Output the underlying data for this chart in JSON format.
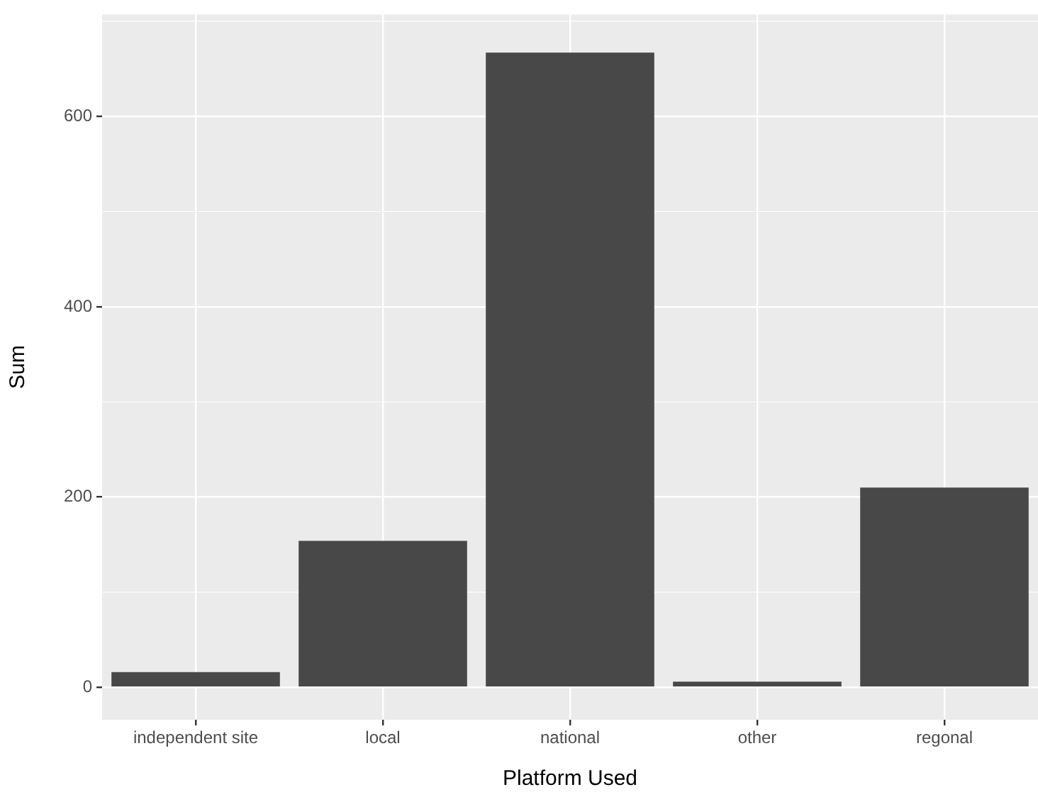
{
  "chart_data": {
    "type": "bar",
    "xlabel": "Platform Used",
    "ylabel": "Sum",
    "categories": [
      "independent site",
      "local",
      "national",
      "other",
      "regonal"
    ],
    "values": [
      16,
      154,
      667,
      6,
      210
    ],
    "color": "#484848",
    "ylim": [
      -34,
      707
    ],
    "yticks": [
      0,
      200,
      400,
      600
    ],
    "grid": true,
    "legend": false
  }
}
